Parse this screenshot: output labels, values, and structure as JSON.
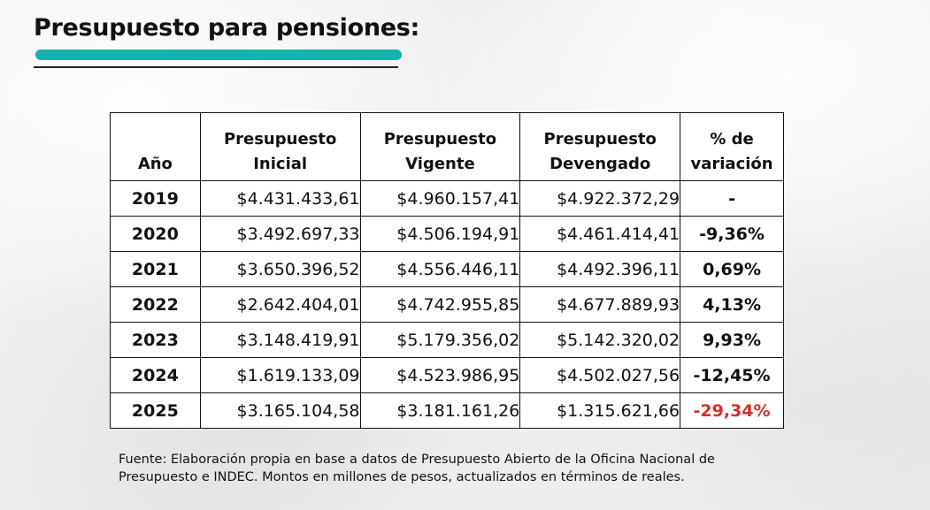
{
  "title": "Presupuesto para pensiones:",
  "table": {
    "headers": {
      "year": "Año",
      "initial_l1": "Presupuesto",
      "initial_l2": "Inicial",
      "current_l1": "Presupuesto",
      "current_l2": "Vigente",
      "accrued_l1": "Presupuesto",
      "accrued_l2": "Devengado",
      "variation_l1": "% de",
      "variation_l2": "variación"
    },
    "rows": [
      {
        "year": "2019",
        "initial": "$4.431.433,61",
        "current": "$4.960.157,41",
        "accrued": "$4.922.372,29",
        "variation": "-"
      },
      {
        "year": "2020",
        "initial": "$3.492.697,33",
        "current": "$4.506.194,91",
        "accrued": "$4.461.414,41",
        "variation": "-9,36%"
      },
      {
        "year": "2021",
        "initial": "$3.650.396,52",
        "current": "$4.556.446,11",
        "accrued": "$4.492.396,11",
        "variation": "0,69%"
      },
      {
        "year": "2022",
        "initial": "$2.642.404,01",
        "current": "$4.742.955,85",
        "accrued": "$4.677.889,93",
        "variation": "4,13%"
      },
      {
        "year": "2023",
        "initial": "$3.148.419,91",
        "current": "$5.179.356,02",
        "accrued": "$5.142.320,02",
        "variation": "9,93%"
      },
      {
        "year": "2024",
        "initial": "$1.619.133,09",
        "current": "$4.523.986,95",
        "accrued": "$4.502.027,56",
        "variation": "-12,45%"
      },
      {
        "year": "2025",
        "initial": "$3.165.104,58",
        "current": "$3.181.161,26",
        "accrued": "$1.315.621,66",
        "variation": "-29,34%"
      }
    ]
  },
  "source_note": {
    "line1": "Fuente: Elaboración propia en base a datos de Presupuesto Abierto de la Oficina Nacional de",
    "line2": "Presupuesto e INDEC. Montos en millones de pesos, actualizados en términos de reales."
  },
  "colors": {
    "accent_underline": "#14b3ad",
    "highlight_negative": "#d3302f",
    "background": "#f1f1f1"
  }
}
